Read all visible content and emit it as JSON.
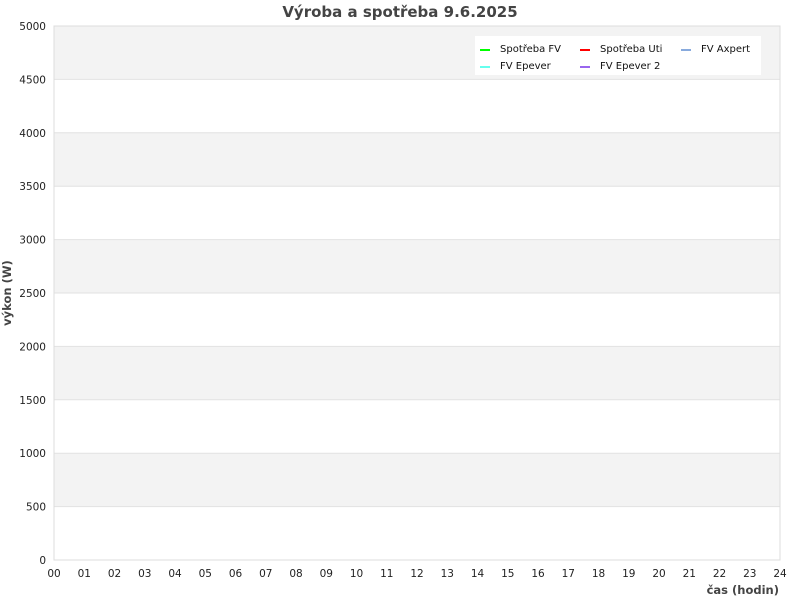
{
  "chart_data": {
    "type": "line",
    "title": "Výroba a spotřeba 9.6.2025",
    "xlabel": "čas (hodin)",
    "ylabel": "výkon (W)",
    "xlim": [
      0,
      24
    ],
    "ylim": [
      0,
      5000
    ],
    "x_ticks": [
      "00",
      "01",
      "02",
      "03",
      "04",
      "05",
      "06",
      "07",
      "08",
      "09",
      "10",
      "11",
      "12",
      "13",
      "14",
      "15",
      "16",
      "17",
      "18",
      "19",
      "20",
      "21",
      "22",
      "23",
      "24"
    ],
    "y_ticks": [
      "0",
      "500",
      "1000",
      "1500",
      "2000",
      "2500",
      "3000",
      "3500",
      "4000",
      "4500",
      "5000"
    ],
    "grid": true,
    "legend_position": "top-right",
    "series": [
      {
        "name": "Spotřeba FV",
        "color": "#00ff00",
        "values": []
      },
      {
        "name": "Spotřeba Uti",
        "color": "#ff0000",
        "values": []
      },
      {
        "name": "FV Axpert",
        "color": "#88aadd",
        "values": []
      },
      {
        "name": "FV Epever",
        "color": "#66ffee",
        "values": []
      },
      {
        "name": "FV Epever 2",
        "color": "#9966ee",
        "values": []
      }
    ]
  }
}
